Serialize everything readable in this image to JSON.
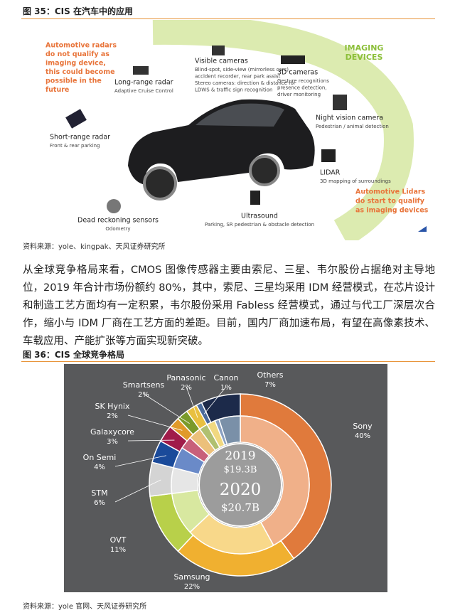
{
  "figure35": {
    "caption": "图 35：CIS 在汽车中的应用",
    "source": "资料来源：yole、kingpak、天风证券研究所",
    "radar_note": [
      "Automotive radars",
      "do not qualify as",
      "imaging device,",
      "this could become",
      "possible in the",
      "future"
    ],
    "imaging_devices": [
      "IMAGING",
      "DEVICES"
    ],
    "lidar_note": [
      "Automotive Lidars",
      "do start to qualify",
      "as imaging devices"
    ],
    "items": [
      {
        "name": "Long-range radar",
        "desc": [
          "Adaptive Cruise Control"
        ]
      },
      {
        "name": "Visible cameras",
        "desc": [
          "Blind-spot, side-view (mirrorless cars),",
          "accident recorder, rear park assist",
          "Stereo cameras: direction & distance for",
          "LDWS & traffic sign recognition"
        ]
      },
      {
        "name": "3D cameras",
        "desc": [
          "Gesture recognitions",
          "presence detection,",
          "driver monitoring"
        ]
      },
      {
        "name": "Night vision camera",
        "desc": [
          "Pedestrian / animal detection"
        ]
      },
      {
        "name": "Short-range radar",
        "desc": [
          "Front & rear parking"
        ]
      },
      {
        "name": "LIDAR",
        "desc": [
          "3D mapping of surroundings"
        ]
      },
      {
        "name": "Dead reckoning sensors",
        "desc": [
          "Odometry"
        ]
      },
      {
        "name": "Ultrasound",
        "desc": [
          "Parking, SR pedestrian & obstacle detection"
        ]
      }
    ]
  },
  "body": "从全球竞争格局来看，CMOS 图像传感器主要由索尼、三星、韦尔股份占据绝对主导地位，2019 年合计市场份额约 80%，其中，索尼、三星均采用 IDM 经营模式，在芯片设计和制造工艺方面均有一定积累，韦尔股份采用 Fabless 经营模式，通过与代工厂深层次合作，缩小与 IDM 厂商在工艺方面的差距。目前，国内厂商加速布局，有望在高像素技术、车载应用、产能扩张等方面实现新突破。",
  "figure36": {
    "caption": "图 36：CIS 全球竞争格局",
    "source": "资料来源：yole 官网、天风证券研究所"
  },
  "chart_data": {
    "type": "donut",
    "categories": [
      "Sony",
      "Samsung",
      "OVT",
      "STM",
      "On Semi",
      "Galaxycore",
      "SK Hynix",
      "Smartsens",
      "Panasonic",
      "Canon",
      "Others"
    ],
    "series": [
      {
        "name": "2020",
        "total": "$20.7B",
        "values": [
          40,
          22,
          11,
          6,
          4,
          3,
          2,
          2,
          2,
          1,
          7
        ],
        "value_labels": [
          "40%",
          "22%",
          "11%",
          "6%",
          "4%",
          "3%",
          "2%",
          "2%",
          "2%",
          "1%",
          "7%"
        ],
        "colors": [
          "#e07a3c",
          "#f0b030",
          "#b8d04a",
          "#d4d4d4",
          "#1a4a9a",
          "#a01c4a",
          "#e09a2a",
          "#7a9a2a",
          "#e8c040",
          "#4a6a9a",
          "#1c2a4a"
        ]
      },
      {
        "name": "2019",
        "total": "$19.3B",
        "values": [
          42,
          21,
          10,
          6,
          5,
          3,
          3,
          2,
          2,
          1,
          5
        ],
        "colors": [
          "#f0b089",
          "#f8d88a",
          "#d8e8a0",
          "#e6e6e6",
          "#6a8ac8",
          "#c8607a",
          "#ecc07a",
          "#b0c070",
          "#f0d880",
          "#8aa0c0",
          "#7a90a8"
        ]
      }
    ]
  }
}
